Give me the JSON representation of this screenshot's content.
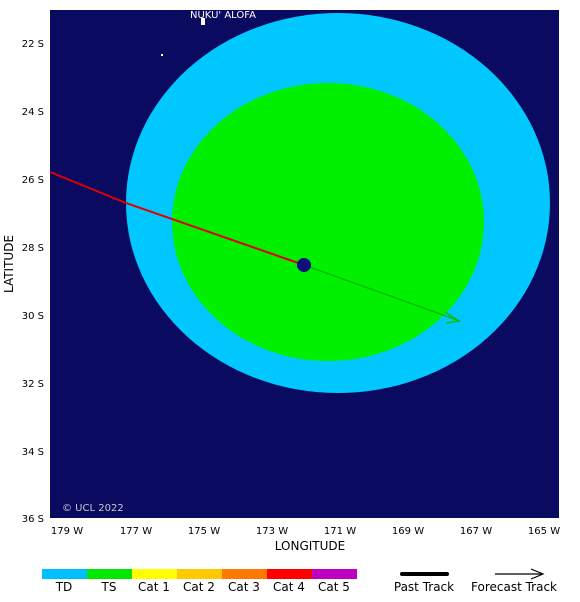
{
  "map": {
    "place_label": "NUKU' ALOFA",
    "copyright": "© UCL 2022",
    "x_axis_label": "LONGITUDE",
    "y_axis_label": "LATITUDE",
    "lon_ticks": [
      "179 W",
      "177 W",
      "175 W",
      "173 W",
      "171 W",
      "169 W",
      "167 W",
      "165 W"
    ],
    "lat_ticks": [
      "22 S",
      "24 S",
      "26 S",
      "28 S",
      "30 S",
      "32 S",
      "34 S",
      "36 S"
    ],
    "colors": {
      "ocean": "#0a0a60",
      "td_wind_field": "#00c8ff",
      "ts_wind_field": "#00f000",
      "past_track": "#e00000",
      "forecast_track": "#00c000",
      "storm_center": "#10107a"
    },
    "storm": {
      "position": {
        "lon": "172.1 W",
        "lat": "28.5 S"
      }
    }
  },
  "legend": {
    "categories": [
      {
        "label": "TD",
        "color": "#00bfff"
      },
      {
        "label": "TS",
        "color": "#00e800"
      },
      {
        "label": "Cat 1",
        "color": "#ffff00"
      },
      {
        "label": "Cat 2",
        "color": "#ffc800"
      },
      {
        "label": "Cat 3",
        "color": "#ff7800"
      },
      {
        "label": "Cat 4",
        "color": "#ff0000"
      },
      {
        "label": "Cat 5",
        "color": "#c000c0"
      }
    ],
    "past_track_label": "Past Track",
    "forecast_track_label": "Forecast Track"
  }
}
